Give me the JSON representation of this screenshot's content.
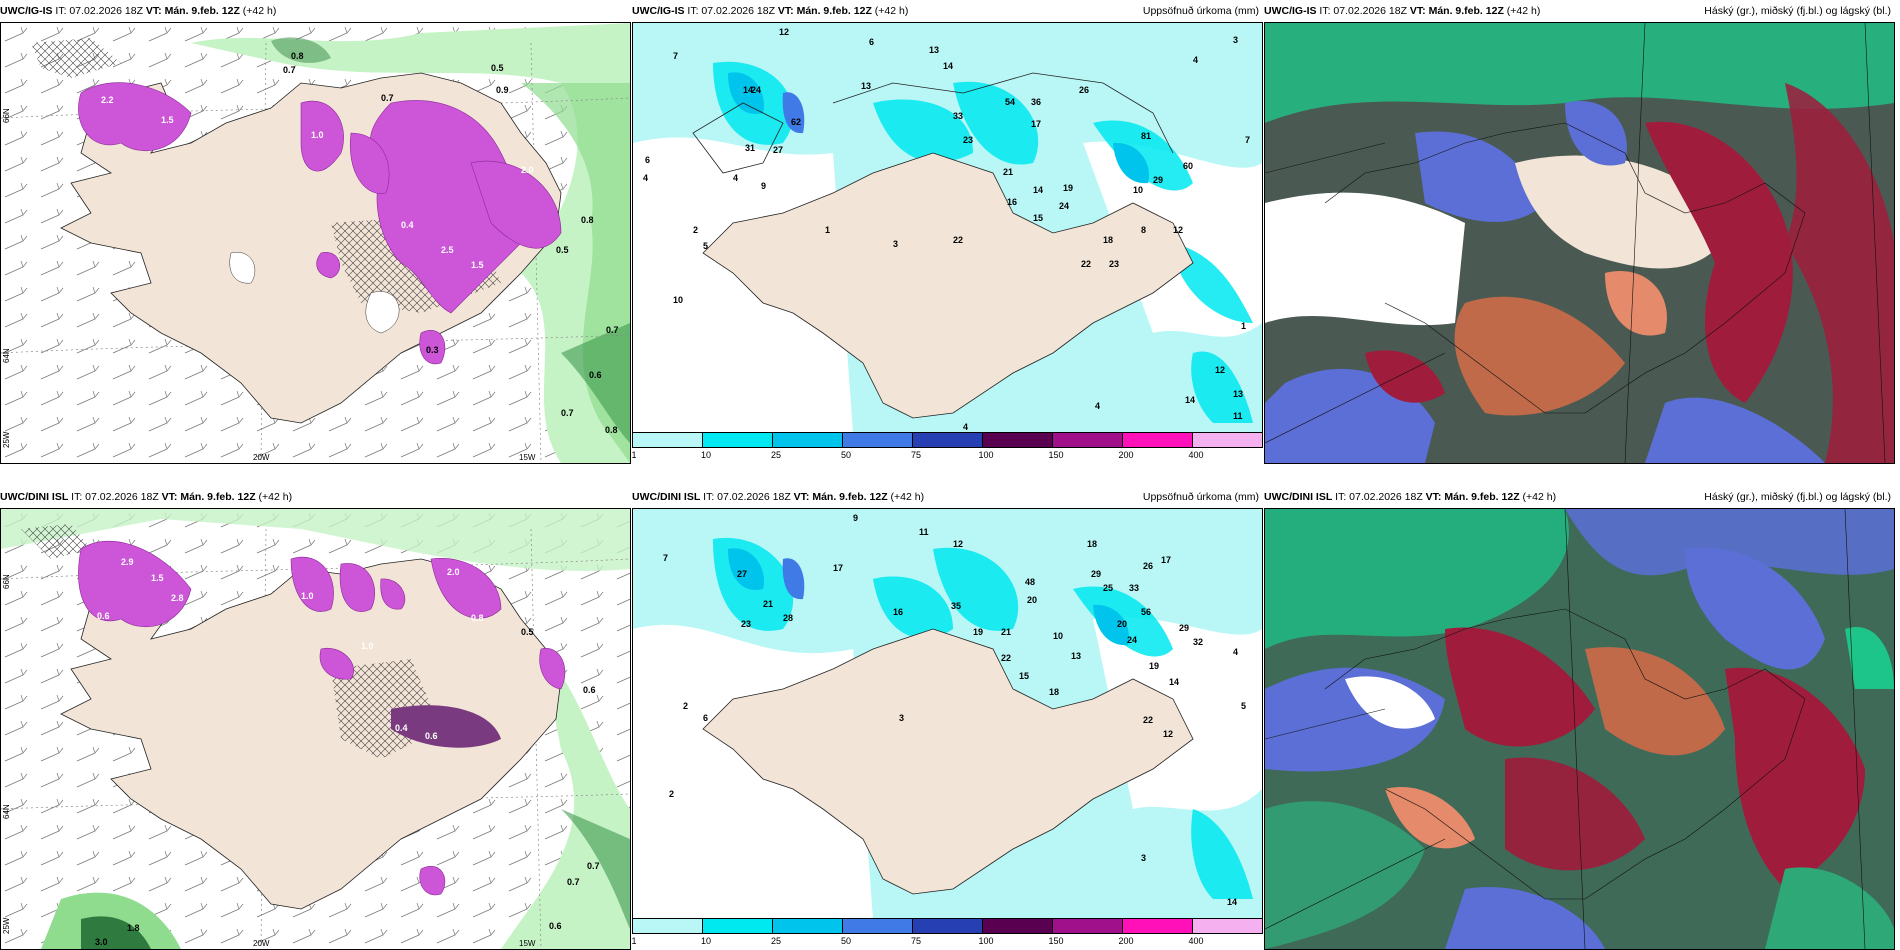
{
  "panels": [
    {
      "id": "p1",
      "model": "UWC/IG-IS",
      "issue": "IT: 07.02.2026 18Z",
      "valid_label": "VT:",
      "valid": "Mán. 9.feb. 12Z",
      "lead": "(+42 h)",
      "right_title": "",
      "values": [
        "0.8",
        "0.7",
        "0.6",
        "2.2",
        "1.5",
        "0.5",
        "0.9",
        "0.7",
        "0.8",
        "0.5",
        "0.7",
        "0.6",
        "0.7",
        "0.8",
        "0.3",
        "0.4",
        "2.0",
        "1.5",
        "2.5",
        "1.0"
      ],
      "axis": {
        "top_lat": "66N",
        "mid_lat": "64N",
        "bottom_lat": "25W",
        "lon_left": "20W",
        "lon_right": "15W"
      }
    },
    {
      "id": "p2",
      "model": "UWC/IG-IS",
      "issue": "IT: 07.02.2026 18Z",
      "valid_label": "VT:",
      "valid": "Mán. 9.feb. 12Z",
      "lead": "(+42 h)",
      "right_title": "Uppsöfnuð úrkoma (mm)",
      "values": [
        "12",
        "13",
        "6",
        "7",
        "14",
        "13",
        "12",
        "14",
        "6",
        "4",
        "3",
        "4",
        "7",
        "24",
        "62",
        "31",
        "27",
        "16",
        "9",
        "33",
        "23",
        "26",
        "31",
        "54",
        "36",
        "17",
        "21",
        "16",
        "14",
        "15",
        "24",
        "19",
        "18",
        "22",
        "23",
        "8",
        "12",
        "10",
        "60",
        "81",
        "29",
        "4",
        "1",
        "2",
        "5",
        "3",
        "22",
        "10",
        "1",
        "12",
        "14",
        "13",
        "11",
        "4",
        "4"
      ]
    },
    {
      "id": "p3",
      "model": "UWC/IG-IS",
      "issue": "IT: 07.02.2026 18Z",
      "valid_label": "VT:",
      "valid": "Mán. 9.feb. 12Z",
      "lead": "(+42 h)",
      "right_title": "Háský (gr.), miðský (fj.bl.) og lágský (bl.)"
    },
    {
      "id": "p4",
      "model": "UWC/DINI ISL",
      "issue": "IT: 07.02.2026 18Z",
      "valid_label": "VT:",
      "valid": "Mán. 9.feb. 12Z",
      "lead": "(+42 h)",
      "right_title": "",
      "values": [
        "2.9",
        "2.8",
        "1.5",
        "0.6",
        "2.0",
        "1.0",
        "0.8",
        "0.4",
        "0.6",
        "1.0",
        "1.8",
        "3.0",
        "0.7",
        "0.6",
        "0.7",
        "0.6",
        "0.5"
      ],
      "axis": {
        "top_lat": "66N",
        "mid_lat": "64N",
        "bottom_lat": "25W",
        "lon_left": "20W",
        "lon_right": "15W"
      }
    },
    {
      "id": "p5",
      "model": "UWC/DINI ISL",
      "issue": "IT: 07.02.2026 18Z",
      "valid_label": "VT:",
      "valid": "Mán. 9.feb. 12Z",
      "lead": "(+42 h)",
      "right_title": "Uppsöfnuð úrkoma (mm)",
      "values": [
        "9",
        "7",
        "11",
        "12",
        "18",
        "26",
        "29",
        "25",
        "33",
        "17",
        "35",
        "19",
        "21",
        "48",
        "20",
        "22",
        "20",
        "10",
        "13",
        "15",
        "18",
        "22",
        "12",
        "56",
        "24",
        "29",
        "32",
        "19",
        "14",
        "28",
        "21",
        "23",
        "27",
        "16",
        "17",
        "3",
        "2",
        "6",
        "2",
        "5",
        "4",
        "3",
        "14"
      ]
    },
    {
      "id": "p6",
      "model": "UWC/DINI ISL",
      "issue": "IT: 07.02.2026 18Z",
      "valid_label": "VT:",
      "valid": "Mán. 9.feb. 12Z",
      "lead": "(+42 h)",
      "right_title": "Háský (gr.), miðský (fj.bl.) og lágský (bl.)"
    }
  ],
  "colorbar": {
    "ticks": [
      "1",
      "10",
      "25",
      "50",
      "75",
      "100",
      "150",
      "200",
      "400"
    ],
    "colors": [
      "#b9f7f7",
      "#00e8f0",
      "#00c4ec",
      "#3f7ae6",
      "#2640b4",
      "#5a0050",
      "#a0108a",
      "#ff10b8",
      "#f5b0f0"
    ]
  },
  "colors": {
    "land": "#f2e4d6",
    "snow_light": "#f5fbfb",
    "precip_purple": "#cc55d8",
    "wind_green": "#bdf0bd",
    "cloud_high": "#555f59",
    "cloud_mid": "#1ec58a",
    "cloud_low": "#5b6fd6",
    "cloud_red": "#a01c3c"
  }
}
